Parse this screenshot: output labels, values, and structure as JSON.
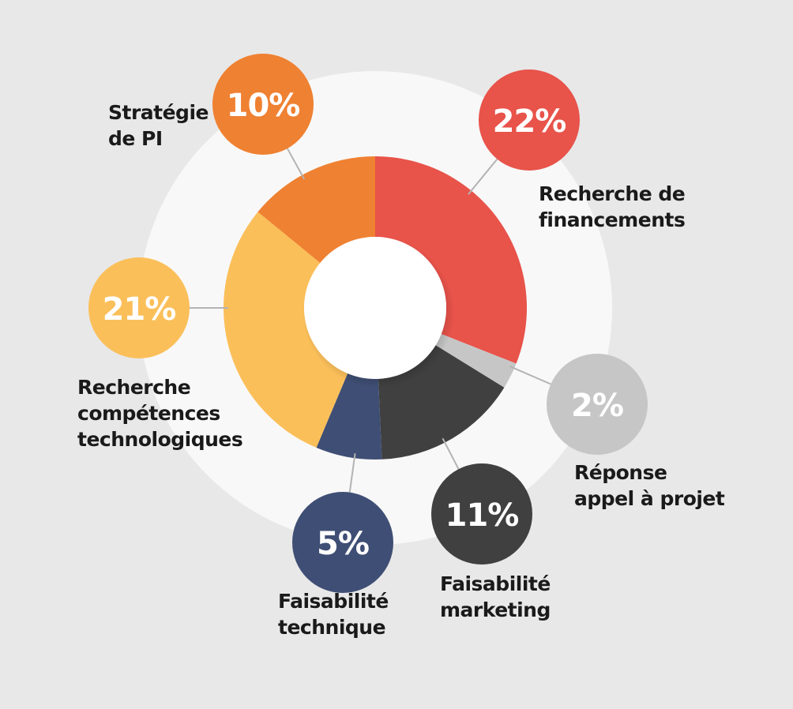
{
  "chart_data": {
    "type": "pie",
    "variant": "donut",
    "title": "",
    "unit": "%",
    "slices": [
      {
        "key": "financements",
        "label_lines": [
          "Recherche de",
          "financements"
        ],
        "value": 22,
        "display": "22%",
        "color": "#e8534a",
        "bubble_color": "#e8534a"
      },
      {
        "key": "appel",
        "label_lines": [
          "Réponse",
          "appel à projet"
        ],
        "value": 2,
        "display": "2%",
        "color": "#c6c6c6",
        "bubble_color": "#c6c6c6"
      },
      {
        "key": "marketing",
        "label_lines": [
          "Faisabilité",
          "marketing"
        ],
        "value": 11,
        "display": "11%",
        "color": "#404040",
        "bubble_color": "#404040"
      },
      {
        "key": "technique",
        "label_lines": [
          "Faisabilité",
          "technique"
        ],
        "value": 5,
        "display": "5%",
        "color": "#3f4e74",
        "bubble_color": "#3f4e74"
      },
      {
        "key": "competences",
        "label_lines": [
          "Recherche",
          "compétences",
          "technologiques"
        ],
        "value": 21,
        "display": "21%",
        "color": "#fbbf5a",
        "bubble_color": "#fbbf5a"
      },
      {
        "key": "pi",
        "label_lines": [
          "Stratégie",
          "de PI"
        ],
        "value": 10,
        "display": "10%",
        "color": "#ef8132",
        "bubble_color": "#ef8132"
      }
    ],
    "colors": {
      "background": "#e8e8e8",
      "halo": "#f8f8f8",
      "connector": "#b3b3b3",
      "center": "#ffffff"
    }
  }
}
